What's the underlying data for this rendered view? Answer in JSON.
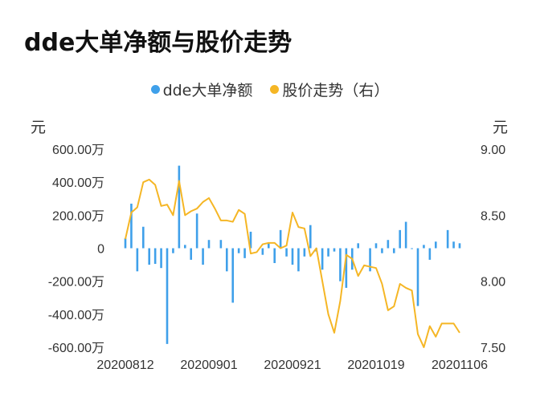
{
  "title": "dde大单净额与股价走势",
  "legend": [
    {
      "label": "dde大单净额",
      "color": "#3fa0ea"
    },
    {
      "label": "股价走势（右）",
      "color": "#f5b625"
    }
  ],
  "unit_left": "元",
  "unit_right": "元",
  "chart_data": {
    "type": "bar+line",
    "x_ticks": [
      "20200812",
      "20200901",
      "20200921",
      "20201019",
      "20201106"
    ],
    "x_tick_index": [
      0,
      14,
      28,
      42,
      56
    ],
    "left_axis": {
      "ticks": [
        "600.00万",
        "400.00万",
        "200.00万",
        "0",
        "-200.00万",
        "-400.00万",
        "-600.00万"
      ],
      "range": [
        -600,
        600
      ]
    },
    "right_axis": {
      "ticks": [
        "9.00",
        "8.50",
        "8.00",
        "7.50"
      ],
      "range": [
        7.5,
        9.0
      ]
    },
    "series": [
      {
        "name": "dde大单净额",
        "type": "bar",
        "color": "#3fa0ea",
        "values": [
          60,
          270,
          -140,
          130,
          -100,
          -95,
          -120,
          -580,
          -30,
          500,
          20,
          -70,
          210,
          -100,
          50,
          0,
          50,
          -140,
          -330,
          -30,
          -60,
          100,
          0,
          -40,
          30,
          -90,
          110,
          -50,
          -100,
          -140,
          -50,
          140,
          -20,
          -130,
          -50,
          -20,
          -200,
          -240,
          -130,
          30,
          0,
          -140,
          30,
          -30,
          50,
          -30,
          110,
          160,
          -5,
          -350,
          20,
          -70,
          40,
          0,
          110,
          40,
          30
        ]
      },
      {
        "name": "股价走势（右）",
        "type": "line",
        "color": "#f5b625",
        "values": [
          8.32,
          8.52,
          8.56,
          8.75,
          8.77,
          8.73,
          8.57,
          8.58,
          8.5,
          8.76,
          8.5,
          8.53,
          8.55,
          8.6,
          8.63,
          8.55,
          8.46,
          8.46,
          8.45,
          8.54,
          8.51,
          8.21,
          8.22,
          8.28,
          8.29,
          8.29,
          8.25,
          8.27,
          8.52,
          8.41,
          8.4,
          8.19,
          8.25,
          8.0,
          7.75,
          7.61,
          7.85,
          8.2,
          8.17,
          8.04,
          8.12,
          8.11,
          8.1,
          7.98,
          7.78,
          7.81,
          7.98,
          7.95,
          7.93,
          7.6,
          7.5,
          7.66,
          7.58,
          7.68,
          7.68,
          7.68,
          7.61
        ]
      }
    ]
  }
}
